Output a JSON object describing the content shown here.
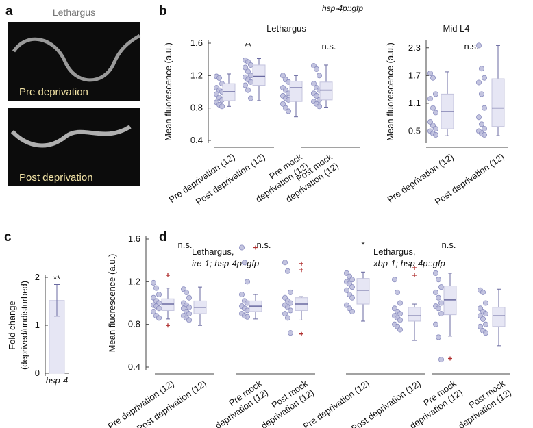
{
  "panel_labels": [
    "a",
    "b",
    "c",
    "d"
  ],
  "images": {
    "title": "Lethargus",
    "labels": [
      "Pre deprivation",
      "Post deprivation"
    ]
  },
  "header": "hsp-4p::gfp",
  "chart_data": [
    {
      "type": "box",
      "title": "Lethargus",
      "ylabel": "Mean fluorescence (a.u.)",
      "ylim": [
        0.4,
        1.6
      ],
      "yticks": [
        0.4,
        0.8,
        1.2,
        1.6
      ],
      "point_color": "#b8badb",
      "box_color": "#e6e6f4",
      "line_color": "#6a6aa0",
      "outlier_color": "#b03030",
      "annotations": [
        "**",
        "n.s."
      ],
      "groups": [
        {
          "label": [
            "Pre deprivation (12)"
          ],
          "points": [
            1.19,
            1.17,
            1.1,
            1.05,
            1.02,
            1.0,
            0.97,
            0.93,
            0.9,
            0.87,
            0.84,
            0.82
          ],
          "box": {
            "low": 0.82,
            "q1": 0.89,
            "median": 1.0,
            "q3": 1.1,
            "high": 1.22
          },
          "outliers": []
        },
        {
          "label": [
            "Post deprivation (12)"
          ],
          "points": [
            1.39,
            1.37,
            1.33,
            1.3,
            1.25,
            1.2,
            1.18,
            1.15,
            1.12,
            1.08,
            1.02,
            0.92
          ],
          "box": {
            "low": 0.89,
            "q1": 1.08,
            "median": 1.19,
            "q3": 1.33,
            "high": 1.41
          },
          "outliers": []
        },
        {
          "label": [
            "Pre mock",
            "deprivation (12)"
          ],
          "points": [
            1.2,
            1.15,
            1.12,
            1.05,
            1.02,
            0.98,
            0.95,
            0.92,
            0.9,
            0.85,
            0.8,
            0.76
          ],
          "box": {
            "low": 0.69,
            "q1": 0.88,
            "median": 1.05,
            "q3": 1.13,
            "high": 1.2
          },
          "outliers": []
        },
        {
          "label": [
            "Post mock",
            "deprivation (12)"
          ],
          "points": [
            1.32,
            1.28,
            1.2,
            1.1,
            1.05,
            1.02,
            0.98,
            0.95,
            0.9,
            0.88,
            0.85,
            0.82
          ],
          "box": {
            "low": 0.81,
            "q1": 0.9,
            "median": 1.02,
            "q3": 1.12,
            "high": 1.33
          },
          "outliers": []
        }
      ]
    },
    {
      "type": "box",
      "title": "Mid L4",
      "ylabel": "Mean fluorescence (a.u.)",
      "ylim": [
        0.3,
        2.4
      ],
      "yticks": [
        0.5,
        1.1,
        1.7,
        2.3
      ],
      "point_color": "#b8badb",
      "box_color": "#e6e6f4",
      "line_color": "#6a6aa0",
      "outlier_color": "#b03030",
      "annotations": [
        "n.s."
      ],
      "groups": [
        {
          "label": [
            "Pre deprivation (12)"
          ],
          "points": [
            1.75,
            1.65,
            1.3,
            1.2,
            1.0,
            0.9,
            0.7,
            0.62,
            0.55,
            0.5,
            0.45,
            0.42
          ],
          "box": {
            "low": 0.4,
            "q1": 0.55,
            "median": 0.92,
            "q3": 1.3,
            "high": 1.78
          },
          "outliers": []
        },
        {
          "label": [
            "Post deprivation (12)"
          ],
          "points": [
            2.35,
            1.85,
            1.65,
            1.55,
            1.3,
            1.0,
            0.8,
            0.65,
            0.55,
            0.5,
            0.45,
            0.42
          ],
          "box": {
            "low": 0.4,
            "q1": 0.6,
            "median": 1.0,
            "q3": 1.63,
            "high": 2.35
          },
          "outliers": []
        }
      ]
    },
    {
      "type": "bar",
      "ylabel": [
        "Fold change",
        "(deprived/undisturbed)"
      ],
      "ylim": [
        0,
        2
      ],
      "yticks": [
        0,
        1,
        2
      ],
      "categories": [
        "hsp-4"
      ],
      "values": [
        1.52
      ],
      "errors": [
        0.33
      ],
      "annotations": [
        "**"
      ],
      "color": "#e6e6f4",
      "line_color": "#6a6aa0"
    },
    {
      "type": "box",
      "title": [
        "Lethargus,",
        "ire-1; hsp-4p::gfp"
      ],
      "ylabel": "Mean fluorescence (a.u.)",
      "ylim": [
        0.4,
        1.6
      ],
      "yticks": [
        0.4,
        0.8,
        1.2,
        1.6
      ],
      "point_color": "#b8badb",
      "box_color": "#e6e6f4",
      "line_color": "#6a6aa0",
      "outlier_color": "#b03030",
      "annotations": [
        "n.s.",
        "n.s."
      ],
      "groups": [
        {
          "label": [
            "Pre deprivation (12)"
          ],
          "points": [
            1.19,
            1.14,
            1.08,
            1.05,
            1.02,
            1.0,
            0.98,
            0.97,
            0.95,
            0.92,
            0.88,
            0.86
          ],
          "box": {
            "low": 0.85,
            "q1": 0.93,
            "median": 0.99,
            "q3": 1.04,
            "high": 1.14
          },
          "outliers": [
            1.26,
            0.79
          ]
        },
        {
          "label": [
            "Post deprivation (12)"
          ],
          "points": [
            1.13,
            1.1,
            1.05,
            1.0,
            0.98,
            0.96,
            0.95,
            0.92,
            0.9,
            0.88,
            0.86,
            0.84
          ],
          "box": {
            "low": 0.79,
            "q1": 0.9,
            "median": 0.96,
            "q3": 1.02,
            "high": 1.15
          },
          "outliers": []
        },
        {
          "label": [
            "Pre mock",
            "deprivation (12)"
          ],
          "points": [
            1.52,
            1.38,
            1.2,
            1.08,
            1.02,
            1.0,
            0.97,
            0.95,
            0.93,
            0.9,
            0.88,
            0.87
          ],
          "box": {
            "low": 0.85,
            "q1": 0.92,
            "median": 0.97,
            "q3": 1.02,
            "high": 1.08
          },
          "outliers": [
            1.52
          ]
        },
        {
          "label": [
            "Post mock",
            "deprivation (12)"
          ],
          "points": [
            1.38,
            1.3,
            1.1,
            1.05,
            1.02,
            1.0,
            0.98,
            0.96,
            0.93,
            0.9,
            0.86,
            0.72
          ],
          "box": {
            "low": 0.84,
            "q1": 0.93,
            "median": 0.99,
            "q3": 1.05,
            "high": 1.06
          },
          "outliers": [
            1.37,
            1.31,
            0.71
          ]
        }
      ]
    },
    {
      "type": "box",
      "title": [
        "Lethargus,",
        "xbp-1; hsp-4p::gfp"
      ],
      "ylim": [
        0.4,
        1.6
      ],
      "point_color": "#b8badb",
      "box_color": "#e6e6f4",
      "line_color": "#6a6aa0",
      "outlier_color": "#b03030",
      "annotations": [
        "*",
        "n.s."
      ],
      "groups": [
        {
          "label": [
            "Pre deprivation (12)"
          ],
          "points": [
            1.28,
            1.25,
            1.22,
            1.2,
            1.18,
            1.15,
            1.12,
            1.08,
            1.05,
            0.98,
            0.95,
            0.92
          ],
          "box": {
            "low": 0.83,
            "q1": 0.99,
            "median": 1.12,
            "q3": 1.23,
            "high": 1.29
          },
          "outliers": []
        },
        {
          "label": [
            "Post deprivation (12)"
          ],
          "points": [
            1.22,
            1.1,
            1.0,
            0.95,
            0.92,
            0.9,
            0.88,
            0.86,
            0.84,
            0.8,
            0.78,
            0.75
          ],
          "box": {
            "low": 0.65,
            "q1": 0.83,
            "median": 0.88,
            "q3": 0.96,
            "high": 0.99
          },
          "outliers": [
            1.33,
            1.26
          ]
        },
        {
          "label": [
            "Pre mock",
            "deprivation (12)"
          ],
          "points": [
            1.28,
            1.22,
            1.15,
            1.1,
            1.05,
            1.0,
            0.97,
            0.95,
            0.9,
            0.8,
            0.68,
            0.47
          ],
          "box": {
            "low": 0.69,
            "q1": 0.89,
            "median": 1.03,
            "q3": 1.16,
            "high": 1.28
          },
          "outliers": [
            0.48
          ]
        },
        {
          "label": [
            "Post mock",
            "deprivation (12)"
          ],
          "points": [
            1.12,
            1.1,
            1.0,
            0.95,
            0.92,
            0.9,
            0.88,
            0.85,
            0.8,
            0.78,
            0.74,
            0.72
          ],
          "box": {
            "low": 0.6,
            "q1": 0.78,
            "median": 0.88,
            "q3": 0.96,
            "high": 1.13
          },
          "outliers": []
        }
      ]
    }
  ]
}
